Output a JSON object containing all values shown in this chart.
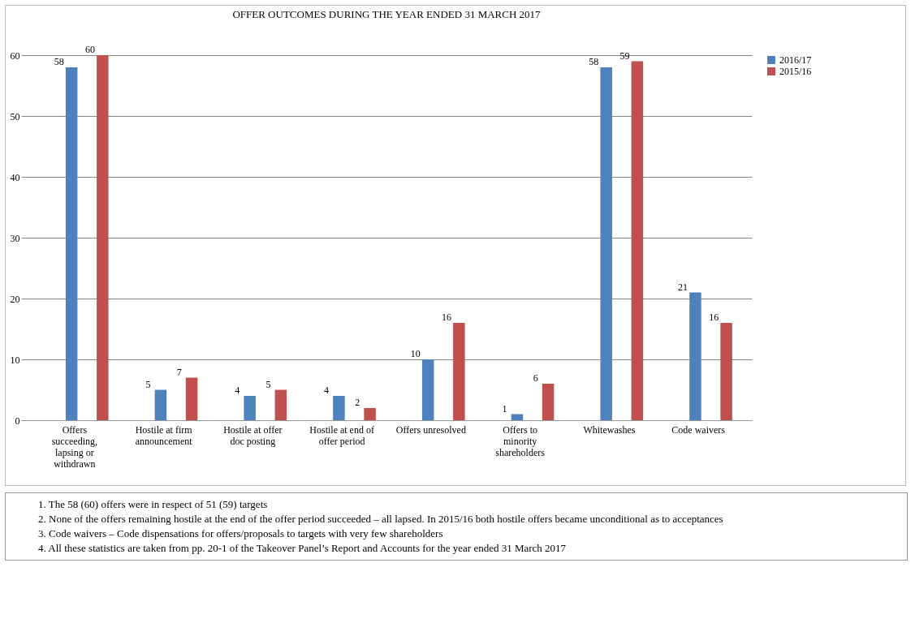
{
  "chart_data": {
    "type": "bar",
    "title": "OFFER OUTCOMES DURING THE YEAR ENDED 31 MARCH 2017",
    "categories": [
      "Offers succeeding, lapsing or withdrawn",
      "Hostile at firm announcement",
      "Hostile at offer doc posting",
      "Hostile at end of offer period",
      "Offers unresolved",
      "Offers to minority shareholders",
      "Whitewashes",
      "Code waivers"
    ],
    "series": [
      {
        "name": "2016/17",
        "color": "#4f81bd",
        "values": [
          58,
          5,
          4,
          4,
          10,
          1,
          58,
          21
        ]
      },
      {
        "name": "2015/16",
        "color": "#c0504d",
        "values": [
          60,
          7,
          5,
          2,
          16,
          6,
          59,
          16
        ]
      }
    ],
    "ylim": [
      0,
      60
    ],
    "yticks": [
      0,
      10,
      20,
      30,
      40,
      50,
      60
    ],
    "grid": "y",
    "legend": "right",
    "data_labels": true,
    "annotations": [
      "1.   The 58 (60) offers were in respect of 51 (59) targets",
      "2.   None of the offers remaining hostile at the end of the offer period succeeded – all lapsed. In 2015/16 both hostile offers became unconditional as to acceptances",
      "3.   Code waivers – Code dispensations for offers/proposals to targets with very few shareholders",
      "4.   All these statistics are taken from pp. 20-1 of the Takeover Panel’s Report and Accounts for the year ended 31 March 2017"
    ]
  }
}
